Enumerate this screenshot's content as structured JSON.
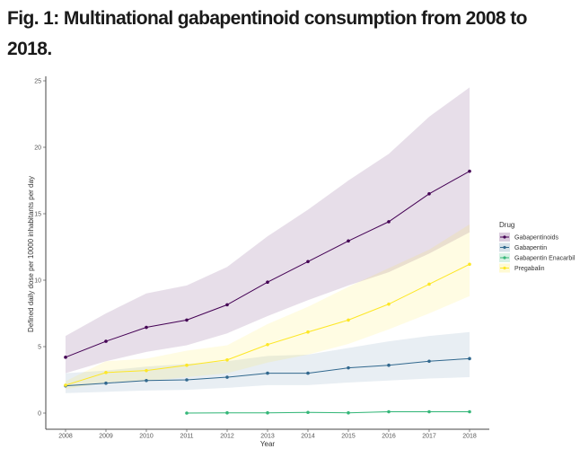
{
  "chart_data": {
    "type": "line",
    "title": "Fig. 1: Multinational gabapentinoid consumption from 2008 to 2018.",
    "xlabel": "Year",
    "ylabel": "Defined daily dose per 10000 inhabitants per day",
    "x": [
      2008,
      2009,
      2010,
      2011,
      2012,
      2013,
      2014,
      2015,
      2016,
      2017,
      2018
    ],
    "ylim": [
      -1.2,
      25.5
    ],
    "yticks": [
      0,
      5,
      10,
      15,
      20,
      25
    ],
    "grid": false,
    "legend": {
      "title": "Drug",
      "placement": "right"
    },
    "series": [
      {
        "name": "Gabapentinoids",
        "color": "#440154",
        "values": [
          4.2,
          5.4,
          6.45,
          7.0,
          8.15,
          9.85,
          11.4,
          12.95,
          14.4,
          16.5,
          18.2
        ],
        "upper": [
          5.8,
          7.5,
          9.0,
          9.6,
          11.0,
          13.3,
          15.3,
          17.5,
          19.5,
          22.3,
          24.5
        ],
        "lower": [
          3.0,
          3.9,
          4.6,
          5.1,
          6.0,
          7.3,
          8.5,
          9.6,
          10.6,
          12.0,
          13.6
        ]
      },
      {
        "name": "Gabapentin",
        "color": "#31688e",
        "values": [
          2.05,
          2.25,
          2.45,
          2.5,
          2.7,
          3.0,
          3.0,
          3.4,
          3.6,
          3.9,
          4.1
        ],
        "upper": [
          3.0,
          3.2,
          3.5,
          3.7,
          3.9,
          4.3,
          4.4,
          4.9,
          5.4,
          5.8,
          6.1
        ],
        "lower": [
          1.5,
          1.6,
          1.7,
          1.75,
          1.9,
          2.1,
          2.1,
          2.3,
          2.45,
          2.6,
          2.7
        ]
      },
      {
        "name": "Gabapentin Enacarbil",
        "color": "#35b779",
        "values": [
          null,
          null,
          null,
          0.0,
          0.02,
          0.02,
          0.05,
          0.02,
          0.1,
          0.1,
          0.1
        ],
        "upper": [
          null,
          null,
          null,
          0.05,
          0.06,
          0.06,
          0.1,
          0.06,
          0.15,
          0.15,
          0.15
        ],
        "lower": [
          null,
          null,
          null,
          0.0,
          0.0,
          0.0,
          0.0,
          0.0,
          0.05,
          0.05,
          0.05
        ]
      },
      {
        "name": "Pregabalin",
        "color": "#fde725",
        "values": [
          2.1,
          3.05,
          3.2,
          3.6,
          4.0,
          5.15,
          6.1,
          7.0,
          8.2,
          9.7,
          11.2
        ],
        "upper": [
          2.4,
          3.9,
          4.1,
          4.7,
          5.1,
          6.7,
          8.0,
          9.5,
          10.9,
          12.3,
          14.2
        ],
        "lower": [
          1.8,
          2.3,
          2.4,
          2.7,
          3.0,
          3.8,
          4.4,
          5.2,
          6.3,
          7.5,
          8.8
        ]
      }
    ]
  }
}
